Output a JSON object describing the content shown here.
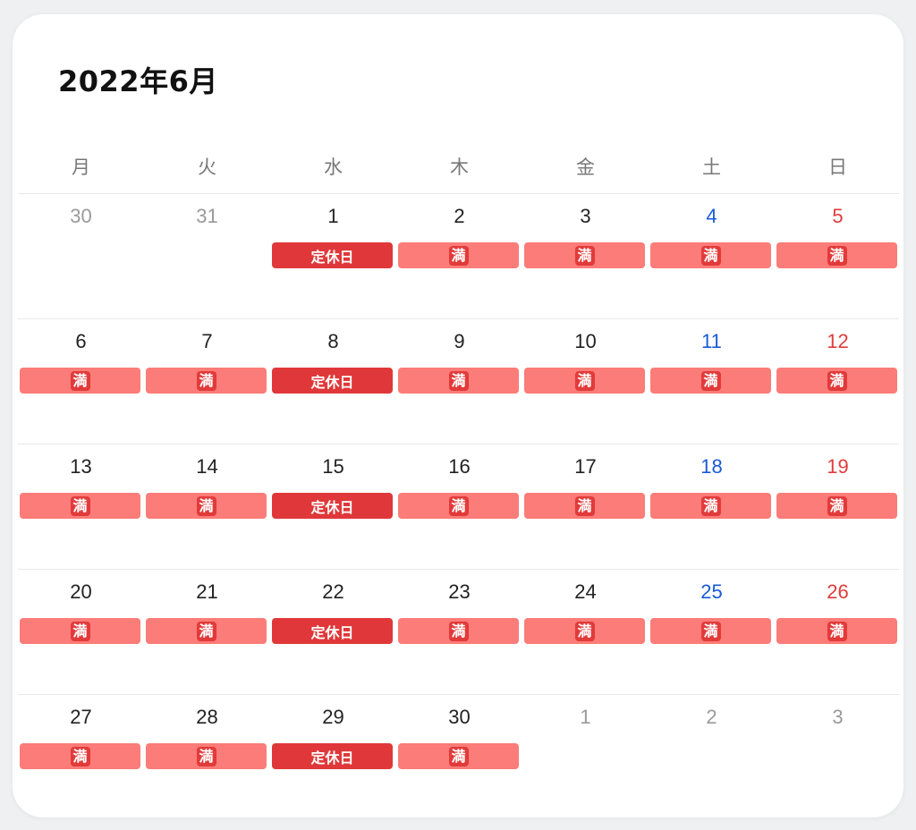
{
  "calendar": {
    "title": "2022年6月",
    "weekdays": [
      "月",
      "火",
      "水",
      "木",
      "金",
      "土",
      "日"
    ],
    "badge_labels": {
      "closed": "定休日",
      "full": "満"
    },
    "colors": {
      "saturday": "#1a5ad8",
      "sunday": "#e03c3c",
      "full_badge": "#fb7c78",
      "closed_badge": "#e0383a",
      "other_month": "#999999"
    },
    "weeks": [
      [
        {
          "day": "30",
          "other": true,
          "status": ""
        },
        {
          "day": "31",
          "other": true,
          "status": ""
        },
        {
          "day": "1",
          "status": "closed"
        },
        {
          "day": "2",
          "status": "full"
        },
        {
          "day": "3",
          "status": "full"
        },
        {
          "day": "4",
          "status": "full"
        },
        {
          "day": "5",
          "status": "full"
        }
      ],
      [
        {
          "day": "6",
          "status": "full"
        },
        {
          "day": "7",
          "status": "full"
        },
        {
          "day": "8",
          "status": "closed"
        },
        {
          "day": "9",
          "status": "full"
        },
        {
          "day": "10",
          "status": "full"
        },
        {
          "day": "11",
          "status": "full"
        },
        {
          "day": "12",
          "status": "full"
        }
      ],
      [
        {
          "day": "13",
          "status": "full"
        },
        {
          "day": "14",
          "status": "full"
        },
        {
          "day": "15",
          "status": "closed"
        },
        {
          "day": "16",
          "status": "full"
        },
        {
          "day": "17",
          "status": "full"
        },
        {
          "day": "18",
          "status": "full"
        },
        {
          "day": "19",
          "status": "full"
        }
      ],
      [
        {
          "day": "20",
          "status": "full"
        },
        {
          "day": "21",
          "status": "full"
        },
        {
          "day": "22",
          "status": "closed"
        },
        {
          "day": "23",
          "status": "full"
        },
        {
          "day": "24",
          "status": "full"
        },
        {
          "day": "25",
          "status": "full"
        },
        {
          "day": "26",
          "status": "full"
        }
      ],
      [
        {
          "day": "27",
          "status": "full"
        },
        {
          "day": "28",
          "status": "full"
        },
        {
          "day": "29",
          "status": "closed"
        },
        {
          "day": "30",
          "status": "full"
        },
        {
          "day": "1",
          "other": true,
          "status": ""
        },
        {
          "day": "2",
          "other": true,
          "status": ""
        },
        {
          "day": "3",
          "other": true,
          "status": ""
        }
      ]
    ]
  }
}
